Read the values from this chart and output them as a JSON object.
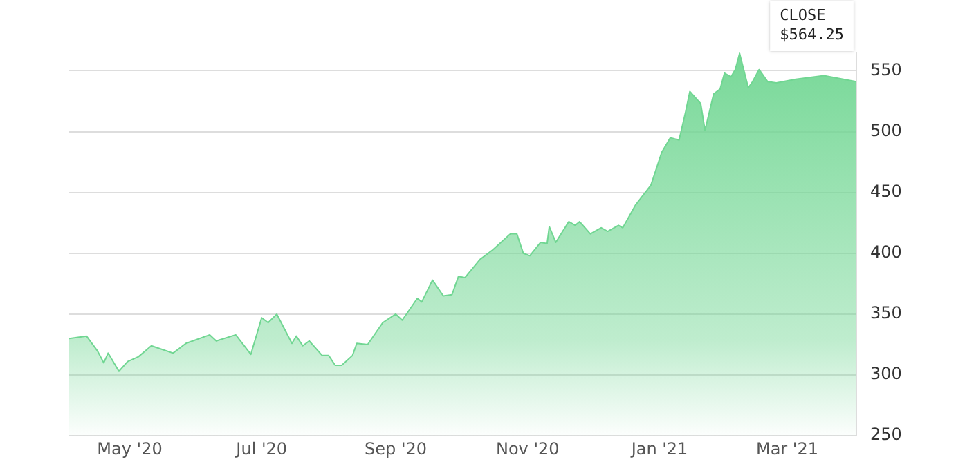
{
  "chart_data": {
    "type": "area",
    "x": [
      "2020-04-03",
      "2020-04-11",
      "2020-04-16",
      "2020-04-19",
      "2020-04-21",
      "2020-04-26",
      "2020-04-30",
      "2020-05-05",
      "2020-05-11",
      "2020-05-21",
      "2020-05-27",
      "2020-06-07",
      "2020-06-10",
      "2020-06-19",
      "2020-06-26",
      "2020-07-01",
      "2020-07-04",
      "2020-07-08",
      "2020-07-15",
      "2020-07-17",
      "2020-07-20",
      "2020-07-23",
      "2020-07-29",
      "2020-08-01",
      "2020-08-04",
      "2020-08-07",
      "2020-08-12",
      "2020-08-14",
      "2020-08-19",
      "2020-08-26",
      "2020-09-01",
      "2020-09-04",
      "2020-09-11",
      "2020-09-13",
      "2020-09-18",
      "2020-09-23",
      "2020-09-27",
      "2020-09-30",
      "2020-10-03",
      "2020-10-10",
      "2020-10-16",
      "2020-10-24",
      "2020-10-27",
      "2020-10-30",
      "2020-11-02",
      "2020-11-07",
      "2020-11-10",
      "2020-11-11",
      "2020-11-14",
      "2020-11-20",
      "2020-11-23",
      "2020-11-25",
      "2020-11-30",
      "2020-12-05",
      "2020-12-08",
      "2020-12-13",
      "2020-12-15",
      "2020-12-21",
      "2020-12-28",
      "2021-01-02",
      "2021-01-06",
      "2021-01-10",
      "2021-01-13",
      "2021-01-15",
      "2021-01-20",
      "2021-01-22",
      "2021-01-26",
      "2021-01-29",
      "2021-01-31",
      "2021-02-03",
      "2021-02-05",
      "2021-02-07",
      "2021-02-11",
      "2021-02-13",
      "2021-02-16",
      "2021-02-20",
      "2021-02-24",
      "2021-03-05",
      "2021-03-18",
      "2021-04-02"
    ],
    "series": [
      {
        "color": "#70d692",
        "values": [
          330,
          332,
          320,
          310,
          318,
          303,
          311,
          315,
          324,
          318,
          326,
          333,
          328,
          333,
          317,
          347,
          343,
          350,
          326,
          332,
          324,
          328,
          316,
          316,
          308,
          308,
          316,
          326,
          325,
          343,
          350,
          345,
          363,
          360,
          378,
          365,
          366,
          381,
          380,
          395,
          403,
          416,
          416,
          400,
          398,
          409,
          408,
          422,
          409,
          426,
          423,
          426,
          416,
          421,
          418,
          423,
          421,
          440,
          456,
          483,
          495,
          493,
          516,
          533,
          523,
          501,
          531,
          535,
          548,
          545,
          551,
          564.25,
          536,
          541,
          551,
          541,
          540,
          543,
          546,
          541
        ]
      }
    ],
    "xlim": [
      "2020-04-03",
      "2021-04-02"
    ],
    "xticks": [
      {
        "value": "2020-05-01",
        "label": "May '20"
      },
      {
        "value": "2020-07-01",
        "label": "Jul '20"
      },
      {
        "value": "2020-09-01",
        "label": "Sep '20"
      },
      {
        "value": "2020-11-01",
        "label": "Nov '20"
      },
      {
        "value": "2021-01-01",
        "label": "Jan '21"
      },
      {
        "value": "2021-03-01",
        "label": "Mar '21"
      }
    ],
    "ylim": [
      250,
      565
    ],
    "yticks": [
      250,
      300,
      350,
      400,
      450,
      500,
      550
    ],
    "grid": "y",
    "annotations": [
      {
        "text": "CLOSE $564.25",
        "x": "2021-02-07",
        "y": 564.25
      }
    ]
  }
}
